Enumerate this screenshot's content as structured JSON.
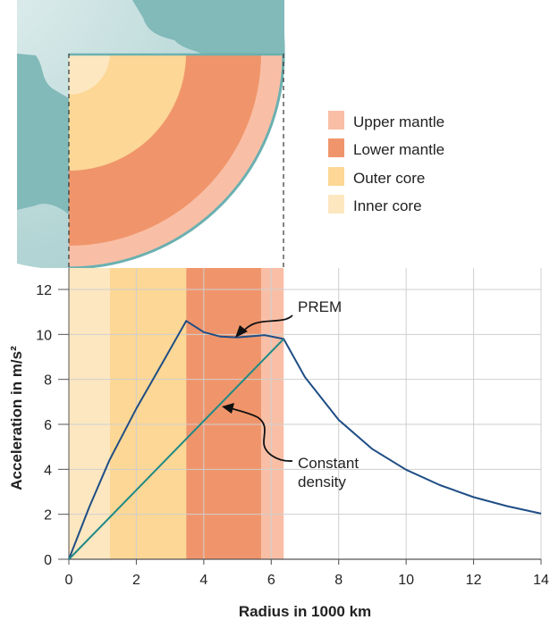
{
  "chart_data": {
    "type": "line",
    "xlabel": "Radius in 1000 km",
    "ylabel": "Acceleration in m/s²",
    "xlim": [
      0,
      14
    ],
    "ylim": [
      0,
      13
    ],
    "xticks": [
      "0",
      "2",
      "4",
      "6",
      "8",
      "10",
      "12",
      "14"
    ],
    "yticks": [
      "0",
      "2",
      "4",
      "6",
      "8",
      "10",
      "12"
    ],
    "grid": true,
    "layers": [
      {
        "name": "Inner core",
        "from": 0,
        "to": 1.22,
        "color": "#fde7c0"
      },
      {
        "name": "Outer core",
        "from": 1.22,
        "to": 3.48,
        "color": "#fcd795"
      },
      {
        "name": "Lower mantle",
        "from": 3.48,
        "to": 5.7,
        "color": "#f0956b"
      },
      {
        "name": "Upper mantle",
        "from": 5.7,
        "to": 6.37,
        "color": "#f9bfa6"
      }
    ],
    "legend": {
      "placement": "top-right",
      "items": [
        "Upper mantle",
        "Lower mantle",
        "Outer core",
        "Inner core"
      ]
    },
    "series": [
      {
        "name": "PREM",
        "color": "#1f4e85",
        "x": [
          0,
          0.6,
          1.2,
          2,
          2.8,
          3.48,
          4,
          4.5,
          5,
          5.5,
          5.8,
          6.37,
          7,
          8,
          9,
          10,
          11,
          12,
          13,
          14
        ],
        "y": [
          0,
          2.3,
          4.4,
          6.7,
          8.8,
          10.6,
          10.1,
          9.9,
          9.87,
          9.93,
          9.97,
          9.8,
          8.1,
          6.2,
          4.9,
          3.98,
          3.3,
          2.76,
          2.36,
          2.03
        ]
      },
      {
        "name": "Constant density",
        "color": "#1f8a86",
        "x": [
          0,
          6.37
        ],
        "y": [
          0,
          9.8
        ]
      }
    ],
    "annotations": [
      {
        "text": "PREM"
      },
      {
        "text_lines": [
          "Constant",
          "density"
        ]
      }
    ]
  }
}
